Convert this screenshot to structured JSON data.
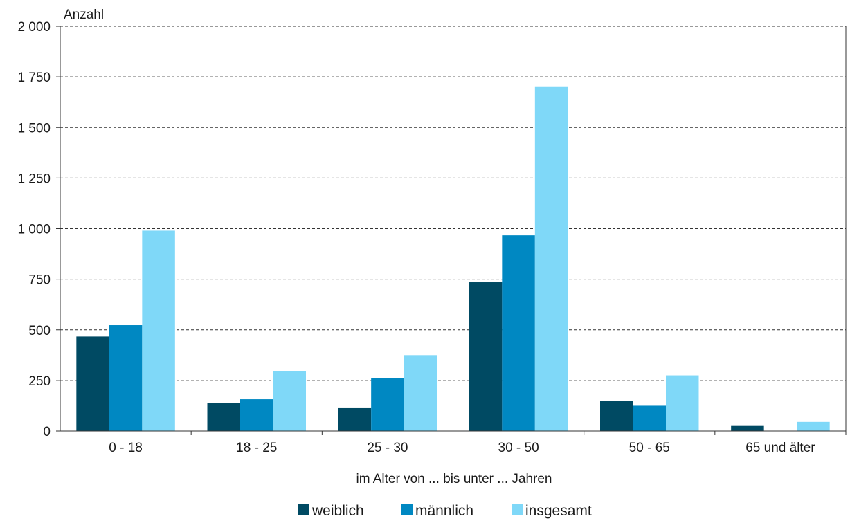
{
  "chart_data": {
    "type": "bar",
    "ylabel": "Anzahl",
    "xlabel": "im Alter von ... bis unter ... Jahren",
    "categories": [
      "0 - 18",
      "18 - 25",
      "25 - 30",
      "30 - 50",
      "50 - 65",
      "65 und älter"
    ],
    "series": [
      {
        "name": "weiblich",
        "color": "#004a63",
        "values": [
          467,
          140,
          113,
          735,
          150,
          25
        ]
      },
      {
        "name": "männlich",
        "color": "#0088c2",
        "values": [
          523,
          157,
          262,
          967,
          125,
          0
        ]
      },
      {
        "name": "insgesamt",
        "color": "#7fd8f8",
        "values": [
          990,
          297,
          375,
          1700,
          275,
          45
        ]
      }
    ],
    "ylim": [
      0,
      2000
    ],
    "yticks": [
      0,
      250,
      500,
      750,
      1000,
      1250,
      1500,
      1750,
      2000
    ],
    "ytick_labels": [
      "0",
      "250",
      "500",
      "750",
      "1 000",
      "1 250",
      "1 500",
      "1 750",
      "2 000"
    ],
    "grid": "horizontal dashed",
    "legend_position": "bottom"
  }
}
